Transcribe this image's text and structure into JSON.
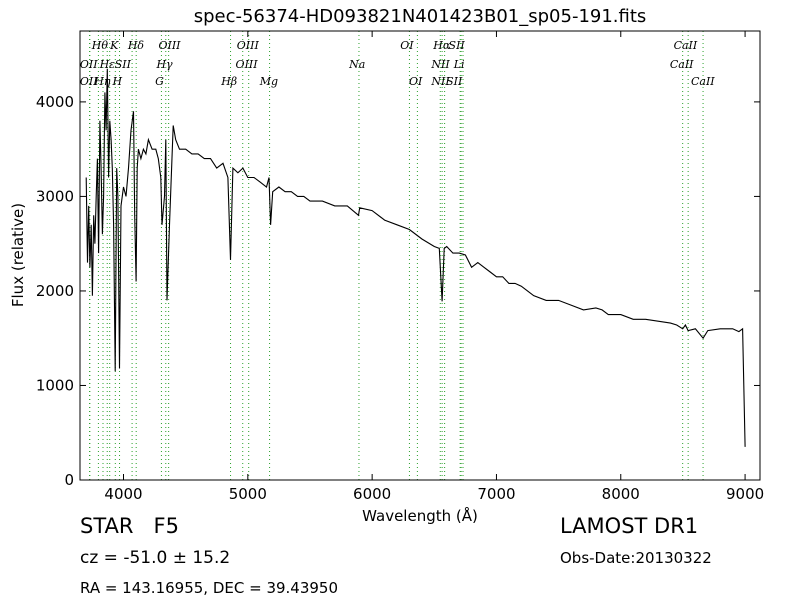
{
  "chart_data": {
    "type": "line",
    "title": "spec-56374-HD093821N401423B01_sp05-191.fits",
    "xlabel": "Wavelength (Å)",
    "ylabel": "Flux (relative)",
    "xlim": [
      3650,
      9120
    ],
    "ylim": [
      0,
      4750
    ],
    "xticks": [
      4000,
      5000,
      6000,
      7000,
      8000,
      9000
    ],
    "yticks": [
      0,
      1000,
      2000,
      3000,
      4000
    ],
    "grid": false,
    "line_color": "#000000",
    "marker_color": "#2ca02c",
    "series": [
      {
        "x": [
          3700,
          3710,
          3720,
          3730,
          3740,
          3750,
          3760,
          3770,
          3780,
          3790,
          3800,
          3810,
          3820,
          3830,
          3840,
          3850,
          3860,
          3870,
          3880,
          3890,
          3900,
          3910,
          3920,
          3933,
          3945,
          3955,
          3968,
          3980,
          4000,
          4020,
          4040,
          4060,
          4080,
          4090,
          4101,
          4110,
          4120,
          4140,
          4160,
          4180,
          4200,
          4230,
          4260,
          4280,
          4300,
          4310,
          4330,
          4340,
          4350,
          4370,
          4400,
          4420,
          4450,
          4500,
          4550,
          4600,
          4650,
          4700,
          4750,
          4800,
          4840,
          4861,
          4880,
          4920,
          4960,
          5000,
          5050,
          5100,
          5150,
          5170,
          5183,
          5200,
          5250,
          5300,
          5350,
          5400,
          5450,
          5500,
          5600,
          5700,
          5800,
          5890,
          5900,
          6000,
          6100,
          6200,
          6300,
          6400,
          6500,
          6540,
          6563,
          6580,
          6600,
          6650,
          6700,
          6750,
          6800,
          6850,
          6900,
          6950,
          7000,
          7050,
          7100,
          7150,
          7200,
          7250,
          7300,
          7400,
          7500,
          7600,
          7700,
          7800,
          7850,
          7900,
          8000,
          8100,
          8200,
          8300,
          8400,
          8450,
          8498,
          8520,
          8542,
          8600,
          8662,
          8700,
          8800,
          8900,
          8950,
          8980,
          8990,
          9000
        ],
        "y": [
          3200,
          2300,
          2900,
          2250,
          2700,
          1950,
          2800,
          2500,
          3000,
          3400,
          2400,
          3800,
          3300,
          2600,
          3000,
          4100,
          3700,
          4350,
          3200,
          3800,
          3600,
          3300,
          2700,
          1150,
          3300,
          3000,
          1180,
          2900,
          3100,
          3000,
          3300,
          3700,
          3900,
          2800,
          2100,
          3300,
          3500,
          3400,
          3500,
          3450,
          3600,
          3500,
          3500,
          3400,
          3200,
          2700,
          3000,
          3600,
          1900,
          2700,
          3750,
          3600,
          3500,
          3500,
          3450,
          3450,
          3400,
          3400,
          3300,
          3350,
          3200,
          2330,
          3300,
          3250,
          3300,
          3200,
          3200,
          3150,
          3100,
          3200,
          2700,
          3050,
          3100,
          3050,
          3050,
          3000,
          3000,
          2950,
          2950,
          2900,
          2900,
          2800,
          2880,
          2850,
          2750,
          2700,
          2650,
          2550,
          2470,
          2450,
          1890,
          2450,
          2470,
          2400,
          2400,
          2380,
          2250,
          2300,
          2250,
          2200,
          2150,
          2150,
          2080,
          2080,
          2050,
          2000,
          1950,
          1900,
          1900,
          1850,
          1800,
          1820,
          1800,
          1750,
          1750,
          1700,
          1700,
          1680,
          1660,
          1640,
          1600,
          1640,
          1580,
          1600,
          1500,
          1580,
          1600,
          1600,
          1570,
          1600,
          1000,
          350
        ]
      }
    ],
    "lines": [
      {
        "name": "Hθ",
        "x": 3798
      },
      {
        "name": "OII",
        "x": 3727
      },
      {
        "name": "OII",
        "x": 3729
      },
      {
        "name": "Hη",
        "x": 3835
      },
      {
        "name": "K",
        "x": 3934
      },
      {
        "name": "Hε",
        "x": 3889
      },
      {
        "name": "NeIII",
        "x": 3869
      },
      {
        "name": "H",
        "x": 3968
      },
      {
        "name": "SII",
        "x": 4069
      },
      {
        "name": "Hδ",
        "x": 4102
      },
      {
        "name": "G",
        "x": 4305
      },
      {
        "name": "Hγ",
        "x": 4340
      },
      {
        "name": "OIII",
        "x": 4363
      },
      {
        "name": "Hβ",
        "x": 4861
      },
      {
        "name": "OIII",
        "x": 4959
      },
      {
        "name": "OIII",
        "x": 5007
      },
      {
        "name": "Mg",
        "x": 5175
      },
      {
        "name": "Na",
        "x": 5894
      },
      {
        "name": "OI",
        "x": 6300
      },
      {
        "name": "OI",
        "x": 6364
      },
      {
        "name": "NII",
        "x": 6548
      },
      {
        "name": "Hα",
        "x": 6563
      },
      {
        "name": "NII",
        "x": 6583
      },
      {
        "name": "Li",
        "x": 6708
      },
      {
        "name": "SII",
        "x": 6716
      },
      {
        "name": "SII",
        "x": 6731
      },
      {
        "name": "CaII",
        "x": 8498
      },
      {
        "name": "CaII",
        "x": 8542
      },
      {
        "name": "CaII",
        "x": 8662
      }
    ],
    "labels": [
      {
        "text": "Hθ",
        "x": 3810,
        "row": 0
      },
      {
        "text": "K",
        "x": 3925,
        "row": 0
      },
      {
        "text": "Hδ",
        "x": 4100,
        "row": 0
      },
      {
        "text": "OIII",
        "x": 4370,
        "row": 0
      },
      {
        "text": "OIII",
        "x": 5000,
        "row": 0
      },
      {
        "text": "OI",
        "x": 6280,
        "row": 0
      },
      {
        "text": "Hα",
        "x": 6560,
        "row": 0
      },
      {
        "text": "SII",
        "x": 6680,
        "row": 0
      },
      {
        "text": "CaII",
        "x": 8520,
        "row": 0
      },
      {
        "text": "OII",
        "x": 3720,
        "row": 1
      },
      {
        "text": "Hε",
        "x": 3870,
        "row": 1
      },
      {
        "text": "SII",
        "x": 3995,
        "row": 1
      },
      {
        "text": "Hγ",
        "x": 4330,
        "row": 1
      },
      {
        "text": "OIII",
        "x": 4990,
        "row": 1
      },
      {
        "text": "Na",
        "x": 5880,
        "row": 1
      },
      {
        "text": "NII",
        "x": 6550,
        "row": 1
      },
      {
        "text": "Li",
        "x": 6700,
        "row": 1
      },
      {
        "text": "CaII",
        "x": 8490,
        "row": 1
      },
      {
        "text": "OII",
        "x": 3720,
        "row": 2
      },
      {
        "text": "Hη",
        "x": 3830,
        "row": 2
      },
      {
        "text": "H",
        "x": 3950,
        "row": 2
      },
      {
        "text": "G",
        "x": 4290,
        "row": 2
      },
      {
        "text": "Hβ",
        "x": 4850,
        "row": 2
      },
      {
        "text": "Mg",
        "x": 5170,
        "row": 2
      },
      {
        "text": "OI",
        "x": 6350,
        "row": 2
      },
      {
        "text": "NII",
        "x": 6550,
        "row": 2
      },
      {
        "text": "SII",
        "x": 6660,
        "row": 2
      },
      {
        "text": "CaII",
        "x": 8660,
        "row": 2
      }
    ]
  },
  "info": {
    "class_text": "STAR   F5",
    "cz_text": "cz = -51.0 ± 15.2",
    "radec_text": "RA = 143.16955, DEC = 39.43950",
    "survey": "LAMOST DR1",
    "obs_date": "Obs-Date:20130322"
  }
}
